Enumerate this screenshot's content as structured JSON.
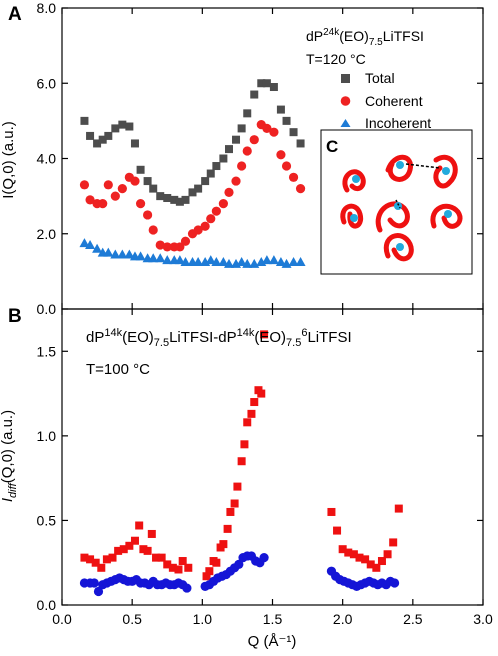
{
  "figure": {
    "x_axis_label": "Q (Å⁻¹)",
    "x_ticks": [
      "0.0",
      "0.5",
      "1.0",
      "1.5",
      "2.0",
      "2.5",
      "3.0"
    ]
  },
  "colors": {
    "total": "#4d4d4d",
    "coherent": "#ee2222",
    "incoherent": "#1e7bd6",
    "d_red": "#ee1111",
    "d_blue": "#1515d6"
  },
  "chart_data": [
    {
      "type": "scatter",
      "panel_letter": "A",
      "title_parts": [
        "dP",
        "24k",
        "(EO)",
        "7.5",
        "LiTFSI"
      ],
      "temperature": "T=120 °C",
      "ylabel": "I(Q,0) (a.u.)",
      "xlabel": "Q (Å⁻¹)",
      "xlim": [
        0,
        3.0
      ],
      "ylim": [
        0,
        8.0
      ],
      "y_ticks": [
        "0.0",
        "2.0",
        "4.0",
        "6.0",
        "8.0"
      ],
      "legend_position": "top-right",
      "series": [
        {
          "name": "Total",
          "marker": "square",
          "color": "#4d4d4d",
          "x": [
            0.16,
            0.2,
            0.25,
            0.29,
            0.33,
            0.38,
            0.43,
            0.48,
            0.52,
            0.56,
            0.61,
            0.65,
            0.7,
            0.75,
            0.8,
            0.84,
            0.88,
            0.93,
            0.97,
            1.02,
            1.06,
            1.1,
            1.15,
            1.19,
            1.24,
            1.28,
            1.32,
            1.37,
            1.42,
            1.46,
            1.51,
            1.56,
            1.6,
            1.65,
            1.7
          ],
          "y": [
            5.0,
            4.6,
            4.4,
            4.5,
            4.6,
            4.8,
            4.9,
            4.85,
            4.4,
            3.7,
            3.4,
            3.2,
            3.0,
            2.95,
            2.9,
            2.85,
            2.9,
            3.1,
            3.2,
            3.4,
            3.6,
            3.8,
            4.0,
            4.25,
            4.5,
            4.8,
            5.2,
            5.7,
            6.0,
            6.0,
            5.9,
            5.3,
            5.0,
            4.7,
            4.4
          ]
        },
        {
          "name": "Coherent",
          "marker": "circle",
          "color": "#ee2222",
          "x": [
            0.16,
            0.2,
            0.25,
            0.29,
            0.33,
            0.38,
            0.43,
            0.48,
            0.52,
            0.56,
            0.61,
            0.65,
            0.7,
            0.75,
            0.8,
            0.84,
            0.88,
            0.93,
            0.97,
            1.02,
            1.06,
            1.1,
            1.15,
            1.19,
            1.24,
            1.28,
            1.32,
            1.37,
            1.42,
            1.46,
            1.51,
            1.56,
            1.6,
            1.65,
            1.7
          ],
          "y": [
            3.3,
            2.9,
            2.8,
            2.8,
            3.3,
            3.0,
            3.2,
            3.5,
            3.4,
            2.8,
            2.5,
            2.1,
            1.7,
            1.65,
            1.65,
            1.65,
            1.8,
            2.0,
            2.1,
            2.2,
            2.4,
            2.6,
            2.8,
            3.1,
            3.4,
            3.8,
            4.2,
            4.5,
            4.9,
            4.8,
            4.7,
            4.1,
            3.8,
            3.5,
            3.2
          ]
        },
        {
          "name": "Incoherent",
          "marker": "triangle",
          "color": "#1e7bd6",
          "x": [
            0.16,
            0.2,
            0.25,
            0.29,
            0.33,
            0.38,
            0.43,
            0.48,
            0.52,
            0.56,
            0.61,
            0.65,
            0.7,
            0.75,
            0.8,
            0.84,
            0.88,
            0.93,
            0.97,
            1.02,
            1.06,
            1.1,
            1.15,
            1.19,
            1.24,
            1.28,
            1.32,
            1.37,
            1.42,
            1.46,
            1.51,
            1.56,
            1.6,
            1.65,
            1.7
          ],
          "y": [
            1.75,
            1.7,
            1.6,
            1.5,
            1.5,
            1.45,
            1.45,
            1.45,
            1.4,
            1.4,
            1.35,
            1.35,
            1.35,
            1.3,
            1.3,
            1.3,
            1.25,
            1.25,
            1.25,
            1.25,
            1.3,
            1.25,
            1.25,
            1.2,
            1.2,
            1.25,
            1.2,
            1.2,
            1.25,
            1.3,
            1.3,
            1.25,
            1.2,
            1.25,
            1.25
          ]
        }
      ],
      "inset": {
        "label": "C"
      }
    },
    {
      "type": "scatter",
      "panel_letter": "B",
      "title_parts": [
        "dP",
        "14k",
        "(EO)",
        "7.5",
        "LiTFSI-dP",
        "14k",
        "(EO)",
        "7.5",
        "6",
        "LiTFSI"
      ],
      "temperature": "T=100 °C",
      "ylabel_main": "I",
      "ylabel_sub": "diff",
      "ylabel_rest": "(Q,0) (a.u.)",
      "xlabel": "Q (Å⁻¹)",
      "xlim": [
        0,
        3.0
      ],
      "ylim": [
        0,
        1.75
      ],
      "y_ticks": [
        "0.0",
        "0.5",
        "1.0",
        "1.5"
      ],
      "series": [
        {
          "marker": "square",
          "color": "#ee1111",
          "x": [
            0.16,
            0.2,
            0.24,
            0.28,
            0.32,
            0.36,
            0.4,
            0.44,
            0.48,
            0.52,
            0.55,
            0.58,
            0.61,
            0.64,
            0.67,
            0.71,
            0.75,
            0.79,
            0.83,
            0.86,
            0.9,
            1.03,
            1.05,
            1.08,
            1.1,
            1.13,
            1.15,
            1.18,
            1.2,
            1.23,
            1.25,
            1.28,
            1.3,
            1.32,
            1.35,
            1.37,
            1.4,
            1.42,
            1.44,
            1.92,
            1.96,
            2.0,
            2.04,
            2.08,
            2.12,
            2.16,
            2.2,
            2.24,
            2.28,
            2.32,
            2.36,
            2.4
          ],
          "y": [
            0.28,
            0.27,
            0.25,
            0.22,
            0.27,
            0.28,
            0.32,
            0.33,
            0.35,
            0.38,
            0.47,
            0.33,
            0.32,
            0.42,
            0.28,
            0.28,
            0.24,
            0.22,
            0.21,
            0.26,
            0.22,
            0.17,
            0.2,
            0.26,
            0.25,
            0.34,
            0.36,
            0.45,
            0.55,
            0.6,
            0.7,
            0.85,
            0.95,
            1.08,
            1.13,
            1.2,
            1.27,
            1.25,
            1.6,
            0.55,
            0.44,
            0.33,
            0.31,
            0.3,
            0.28,
            0.27,
            0.24,
            0.22,
            0.26,
            0.3,
            0.37,
            0.57
          ]
        },
        {
          "marker": "circle",
          "color": "#1515d6",
          "x": [
            0.16,
            0.2,
            0.23,
            0.26,
            0.29,
            0.32,
            0.35,
            0.38,
            0.41,
            0.44,
            0.47,
            0.5,
            0.53,
            0.56,
            0.59,
            0.62,
            0.65,
            0.68,
            0.71,
            0.74,
            0.77,
            0.8,
            0.83,
            0.86,
            0.89,
            1.02,
            1.05,
            1.08,
            1.11,
            1.14,
            1.17,
            1.2,
            1.23,
            1.26,
            1.29,
            1.32,
            1.35,
            1.38,
            1.41,
            1.44,
            1.92,
            1.95,
            1.98,
            2.01,
            2.04,
            2.07,
            2.1,
            2.13,
            2.16,
            2.19,
            2.22,
            2.25,
            2.28,
            2.31,
            2.34,
            2.37
          ],
          "y": [
            0.13,
            0.13,
            0.13,
            0.08,
            0.12,
            0.13,
            0.14,
            0.15,
            0.16,
            0.15,
            0.14,
            0.14,
            0.15,
            0.13,
            0.13,
            0.12,
            0.14,
            0.12,
            0.12,
            0.13,
            0.12,
            0.12,
            0.13,
            0.12,
            0.1,
            0.11,
            0.12,
            0.14,
            0.16,
            0.17,
            0.18,
            0.2,
            0.22,
            0.24,
            0.28,
            0.29,
            0.29,
            0.26,
            0.25,
            0.28,
            0.2,
            0.17,
            0.15,
            0.14,
            0.13,
            0.12,
            0.11,
            0.12,
            0.13,
            0.14,
            0.13,
            0.12,
            0.13,
            0.12,
            0.14,
            0.13
          ]
        }
      ]
    }
  ]
}
